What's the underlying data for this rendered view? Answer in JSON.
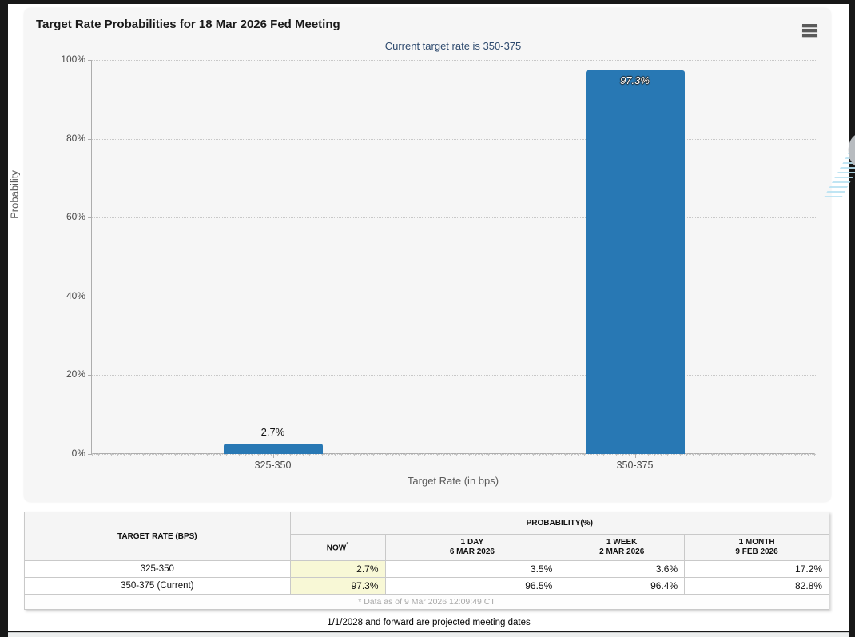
{
  "header": {
    "title": "Target Rate Probabilities for 18 Mar 2026 Fed Meeting",
    "subtitle": "Current target rate is 350-375"
  },
  "chart_data": {
    "type": "bar",
    "categories": [
      "325-350",
      "350-375"
    ],
    "values": [
      2.7,
      97.3
    ],
    "bar_labels": [
      "2.7%",
      "97.3%"
    ],
    "title": "Target Rate Probabilities for 18 Mar 2026 Fed Meeting",
    "subtitle": "Current target rate is 350-375",
    "xlabel": "Target Rate (in bps)",
    "ylabel": "Probability",
    "ylim": [
      0,
      100
    ],
    "yticks": [
      0,
      20,
      40,
      60,
      80,
      100
    ],
    "ytick_labels": [
      "0%",
      "20%",
      "40%",
      "60%",
      "80%",
      "100%"
    ],
    "grid": "horizontal-dotted",
    "legend_position": "none",
    "watermark": "Q"
  },
  "table": {
    "col1_header": "TARGET RATE (BPS)",
    "group_header": "PROBABILITY(%)",
    "columns": [
      {
        "label": "NOW",
        "sup": "*",
        "date": ""
      },
      {
        "label": "1 DAY",
        "date": "6 MAR 2026"
      },
      {
        "label": "1 WEEK",
        "date": "2 MAR 2026"
      },
      {
        "label": "1 MONTH",
        "date": "9 FEB 2026"
      }
    ],
    "rows": [
      {
        "rate": "325-350",
        "now": "2.7%",
        "day": "3.5%",
        "week": "3.6%",
        "month": "17.2%"
      },
      {
        "rate": "350-375 (Current)",
        "now": "97.3%",
        "day": "96.5%",
        "week": "96.4%",
        "month": "82.8%"
      }
    ],
    "footnote": "* Data as of 9 Mar 2026 12:09:49 CT"
  },
  "footer": {
    "note": "1/1/2028 and forward are projected meeting dates"
  },
  "colors": {
    "bar": "#2878b4",
    "now_highlight": "#f8f8d6",
    "subtitle_text": "#2e4a6e",
    "card_background": "#f6f6f6"
  }
}
